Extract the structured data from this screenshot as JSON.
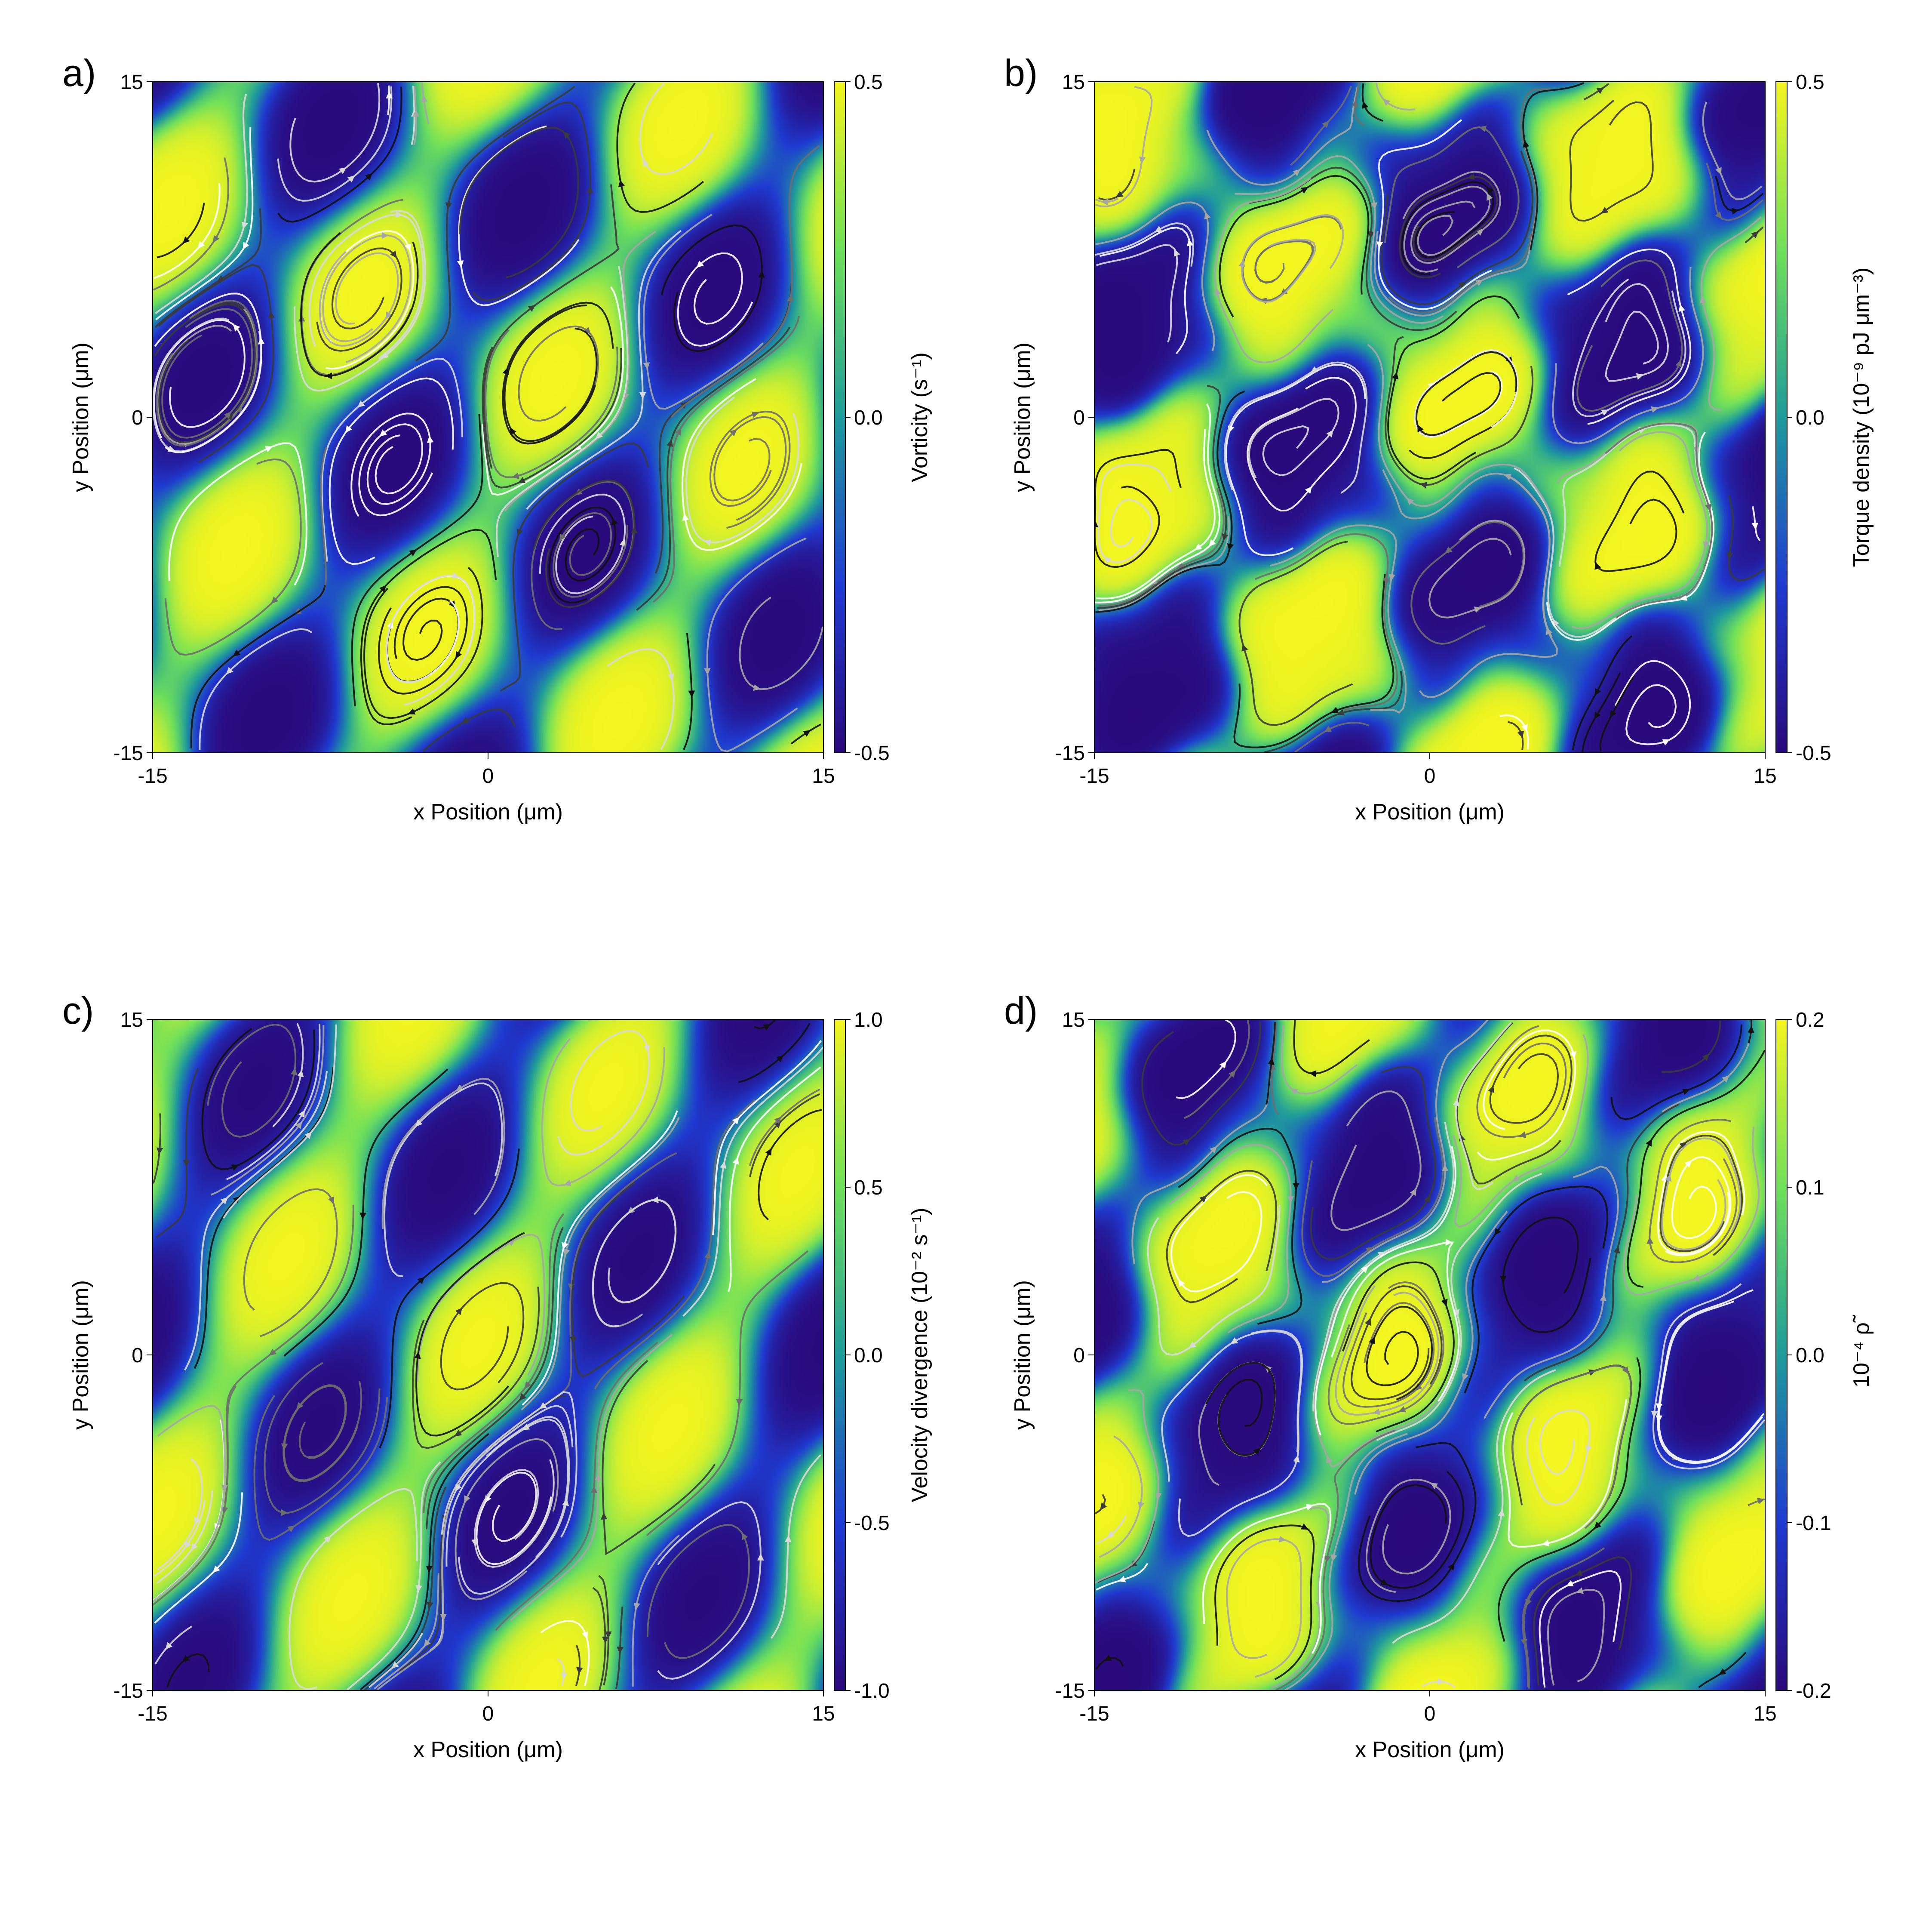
{
  "chart_data": [
    {
      "type": "heatmap",
      "panel_label": "a)",
      "xlabel": "x Position (μm)",
      "ylabel": "y Position (μm)",
      "xlim": [
        -15,
        15
      ],
      "ylim": [
        -15,
        15
      ],
      "x_ticks": [
        "-15",
        "0",
        "15"
      ],
      "y_ticks": [
        "-15",
        "0",
        "15"
      ],
      "colorbar_label": "Vorticity (s⁻¹)",
      "colorbar_range": [
        -0.5,
        0.5
      ],
      "colorbar_ticks": [
        "0.5",
        "0.0",
        "-0.5"
      ],
      "colormap": [
        "#2a0a7c",
        "#1f3bd1",
        "#1f9b9b",
        "#6fe05a",
        "#f4f51e"
      ],
      "overlay": "streamlines",
      "pattern": {
        "kx": 0.6,
        "ky": -0.3,
        "kx2": 0.2,
        "ky2": 0.45,
        "mix": 0.75,
        "phase": 0.3,
        "noise": 0.0
      }
    },
    {
      "type": "heatmap",
      "panel_label": "b)",
      "xlabel": "x Position (μm)",
      "ylabel": "y Position (μm)",
      "xlim": [
        -15,
        15
      ],
      "ylim": [
        -15,
        15
      ],
      "x_ticks": [
        "-15",
        "0",
        "15"
      ],
      "y_ticks": [
        "-15",
        "0",
        "15"
      ],
      "colorbar_label": "Torque density (10⁻⁹ pJ μm⁻³)",
      "colorbar_range": [
        -0.5,
        0.5
      ],
      "colorbar_ticks": [
        "0.5",
        "0.0",
        "-0.5"
      ],
      "colormap": [
        "#2a0a7c",
        "#1f3bd1",
        "#1f9b9b",
        "#6fe05a",
        "#f4f51e"
      ],
      "overlay": "streamlines",
      "pattern": {
        "kx": 0.55,
        "ky": -0.35,
        "kx2": 0.3,
        "ky2": 0.4,
        "mix": 0.9,
        "phase": 1.1,
        "noise": 0.35
      }
    },
    {
      "type": "heatmap",
      "panel_label": "c)",
      "xlabel": "x Position (μm)",
      "ylabel": "y Position (μm)",
      "xlim": [
        -15,
        15
      ],
      "ylim": [
        -15,
        15
      ],
      "x_ticks": [
        "-15",
        "0",
        "15"
      ],
      "y_ticks": [
        "-15",
        "0",
        "15"
      ],
      "colorbar_label": "Velocity divergence (10⁻² s⁻¹)",
      "colorbar_range": [
        -1.0,
        1.0
      ],
      "colorbar_ticks": [
        "1.0",
        "0.5",
        "0.0",
        "-0.5",
        "-1.0"
      ],
      "colormap": [
        "#2a0a7c",
        "#1f3bd1",
        "#1f9b9b",
        "#6fe05a",
        "#f4f51e"
      ],
      "overlay": "streamlines",
      "pattern": {
        "kx": 0.6,
        "ky": -0.3,
        "kx2": 0.2,
        "ky2": 0.45,
        "mix": 0.6,
        "phase": 2.0,
        "noise": 0.0
      }
    },
    {
      "type": "heatmap",
      "panel_label": "d)",
      "xlabel": "x Position (μm)",
      "ylabel": "y Position (μm)",
      "xlim": [
        -15,
        15
      ],
      "ylim": [
        -15,
        15
      ],
      "x_ticks": [
        "-15",
        "0",
        "15"
      ],
      "y_ticks": [
        "-15",
        "0",
        "15"
      ],
      "colorbar_label": "10⁻⁴ ρ̃",
      "colorbar_range": [
        -0.2,
        0.2
      ],
      "colorbar_ticks": [
        "0.2",
        "0.1",
        "0.0",
        "-0.1",
        "-0.2"
      ],
      "colormap": [
        "#2a0a7c",
        "#1f3bd1",
        "#1f9b9b",
        "#6fe05a",
        "#f4f51e"
      ],
      "overlay": "streamlines",
      "pattern": {
        "kx": 0.62,
        "ky": -0.32,
        "kx2": 0.25,
        "ky2": 0.42,
        "mix": 0.8,
        "phase": 2.7,
        "noise": 0.25
      }
    }
  ]
}
